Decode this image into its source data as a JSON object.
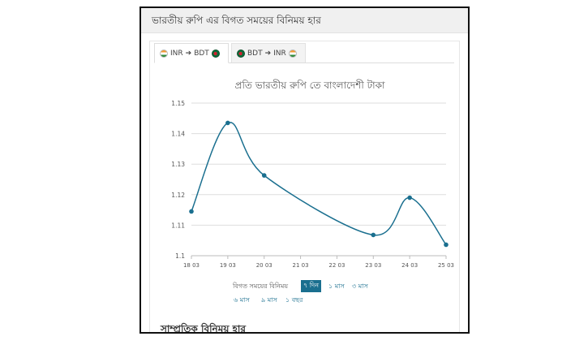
{
  "header": {
    "title": "ভারতীয় রুপি এর বিগত সময়ের বিনিময় হার"
  },
  "tabs": [
    {
      "from": "INR",
      "to": "BDT",
      "arrow": "➔",
      "from_flag": "india-flag-icon",
      "to_flag": "bangladesh-flag-icon",
      "active": true
    },
    {
      "from": "BDT",
      "to": "INR",
      "arrow": "➔",
      "from_flag": "bangladesh-flag-icon",
      "to_flag": "india-flag-icon",
      "active": false
    }
  ],
  "chart_data": {
    "type": "line",
    "title": "প্রতি ভারতীয় রুপি তে বাংলাদেশী টাকা",
    "categories": [
      "18 03",
      "19 03",
      "20 03",
      "21 03",
      "22 03",
      "23 03",
      "24 03",
      "25 03"
    ],
    "series": [
      {
        "x": [
          "18 03",
          "19 03",
          "20 03",
          "23 03",
          "24 03",
          "25 03"
        ],
        "values": [
          1.1145,
          1.1435,
          1.1263,
          1.1068,
          1.119,
          1.1036
        ]
      }
    ],
    "ylim": [
      1.1,
      1.15
    ],
    "yticks": [
      "1.1",
      "1.11",
      "1.12",
      "1.13",
      "1.14",
      "1.15"
    ],
    "grid": true,
    "line_color": "#1a6f8f"
  },
  "ranges": {
    "label": "বিগত সময়ের বিনিময়",
    "active": "৭ দিন",
    "row1": [
      "১ মাস",
      "৩ মাস"
    ],
    "row2": [
      "৬ মাস",
      "৯ মাস",
      "১ বছর"
    ]
  },
  "section": {
    "title": "সাম্প্রতিক বিনিময় হার"
  }
}
